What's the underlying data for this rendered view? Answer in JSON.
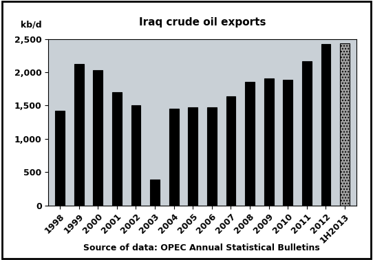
{
  "chart_data": {
    "type": "bar",
    "title": "Iraq crude oil exports",
    "y_label": "kb/d",
    "source": "Source of data: OPEC Annual Statistical Bulletins",
    "categories": [
      "1998",
      "1999",
      "2000",
      "2001",
      "2002",
      "2003",
      "2004",
      "2005",
      "2006",
      "2007",
      "2008",
      "2009",
      "2010",
      "2011",
      "2012",
      "1H2013"
    ],
    "values": [
      1420,
      2130,
      2030,
      1700,
      1500,
      390,
      1450,
      1470,
      1470,
      1640,
      1860,
      1910,
      1890,
      2170,
      2420,
      2430
    ],
    "colors": [
      "#000000",
      "#000000",
      "#000000",
      "#000000",
      "#000000",
      "#000000",
      "#000000",
      "#000000",
      "#000000",
      "#000000",
      "#000000",
      "#000000",
      "#000000",
      "#000000",
      "#000000",
      "#a0a0a0"
    ],
    "ylim": [
      0,
      2500
    ],
    "yticks": [
      0,
      500,
      {
        "value": 1000,
        "label": "1,000"
      },
      {
        "value": 1500,
        "label": "1,500"
      },
      {
        "value": 2000,
        "label": "2,000"
      },
      {
        "value": 2500,
        "label": "2,500"
      }
    ],
    "grid": false
  }
}
